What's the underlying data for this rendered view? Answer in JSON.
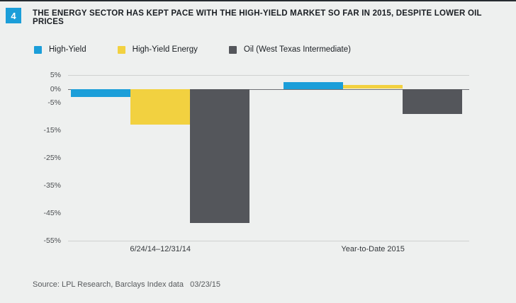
{
  "badge": "4",
  "title": "THE ENERGY SECTOR HAS KEPT PACE WITH THE HIGH-YIELD MARKET SO FAR IN 2015, DESPITE LOWER OIL PRICES",
  "legend": [
    {
      "label": "High-Yield",
      "color": "#1b9ed9"
    },
    {
      "label": "High-Yield Energy",
      "color": "#f2d140"
    },
    {
      "label": "Oil (West Texas Intermediate)",
      "color": "#54565b"
    }
  ],
  "source": "Source: LPL Research, Barclays Index data   03/23/15",
  "chart_data": {
    "type": "bar",
    "categories": [
      "6/24/14–12/31/14",
      "Year-to-Date 2015"
    ],
    "series": [
      {
        "name": "High-Yield",
        "color": "#1b9ed9",
        "values": [
          -3,
          2.5
        ]
      },
      {
        "name": "High-Yield Energy",
        "color": "#f2d140",
        "values": [
          -13,
          1.5
        ]
      },
      {
        "name": "Oil (West Texas Intermediate)",
        "color": "#54565b",
        "values": [
          -48.5,
          -9
        ]
      }
    ],
    "ylim": [
      -55,
      5
    ],
    "yticks": [
      5,
      0,
      -5,
      -15,
      -25,
      -35,
      -45,
      -55
    ],
    "ytick_suffix": "%",
    "grid": "top, bottom and zero line only",
    "legend_position": "top"
  }
}
